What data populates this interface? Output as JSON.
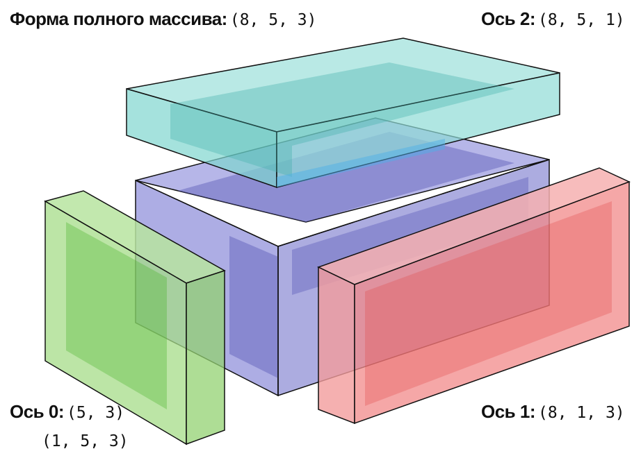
{
  "labels": {
    "full_shape": {
      "title": "Форма полного массива:",
      "value": "(8, 5, 3)"
    },
    "axis2": {
      "title": "Ось 2:",
      "value": "(8, 5, 1)"
    },
    "axis0": {
      "title": "Ось 0:",
      "value": "(5, 3)",
      "value2": "(1, 5, 3)"
    },
    "axis1": {
      "title": "Ось 1:",
      "value": "(8, 1, 3)"
    }
  },
  "colors": {
    "full_array": "#8a8ad8",
    "full_array_inner": "#5a5ab8",
    "axis2_slice": "#7fd6cf",
    "axis2_inner": "#3fb0a8",
    "axis0_slice": "#8fd36a",
    "axis0_inner": "#4cb52e",
    "axis1_slice": "#f28a8a",
    "axis1_inner": "#e04848",
    "edge": "#111111"
  }
}
